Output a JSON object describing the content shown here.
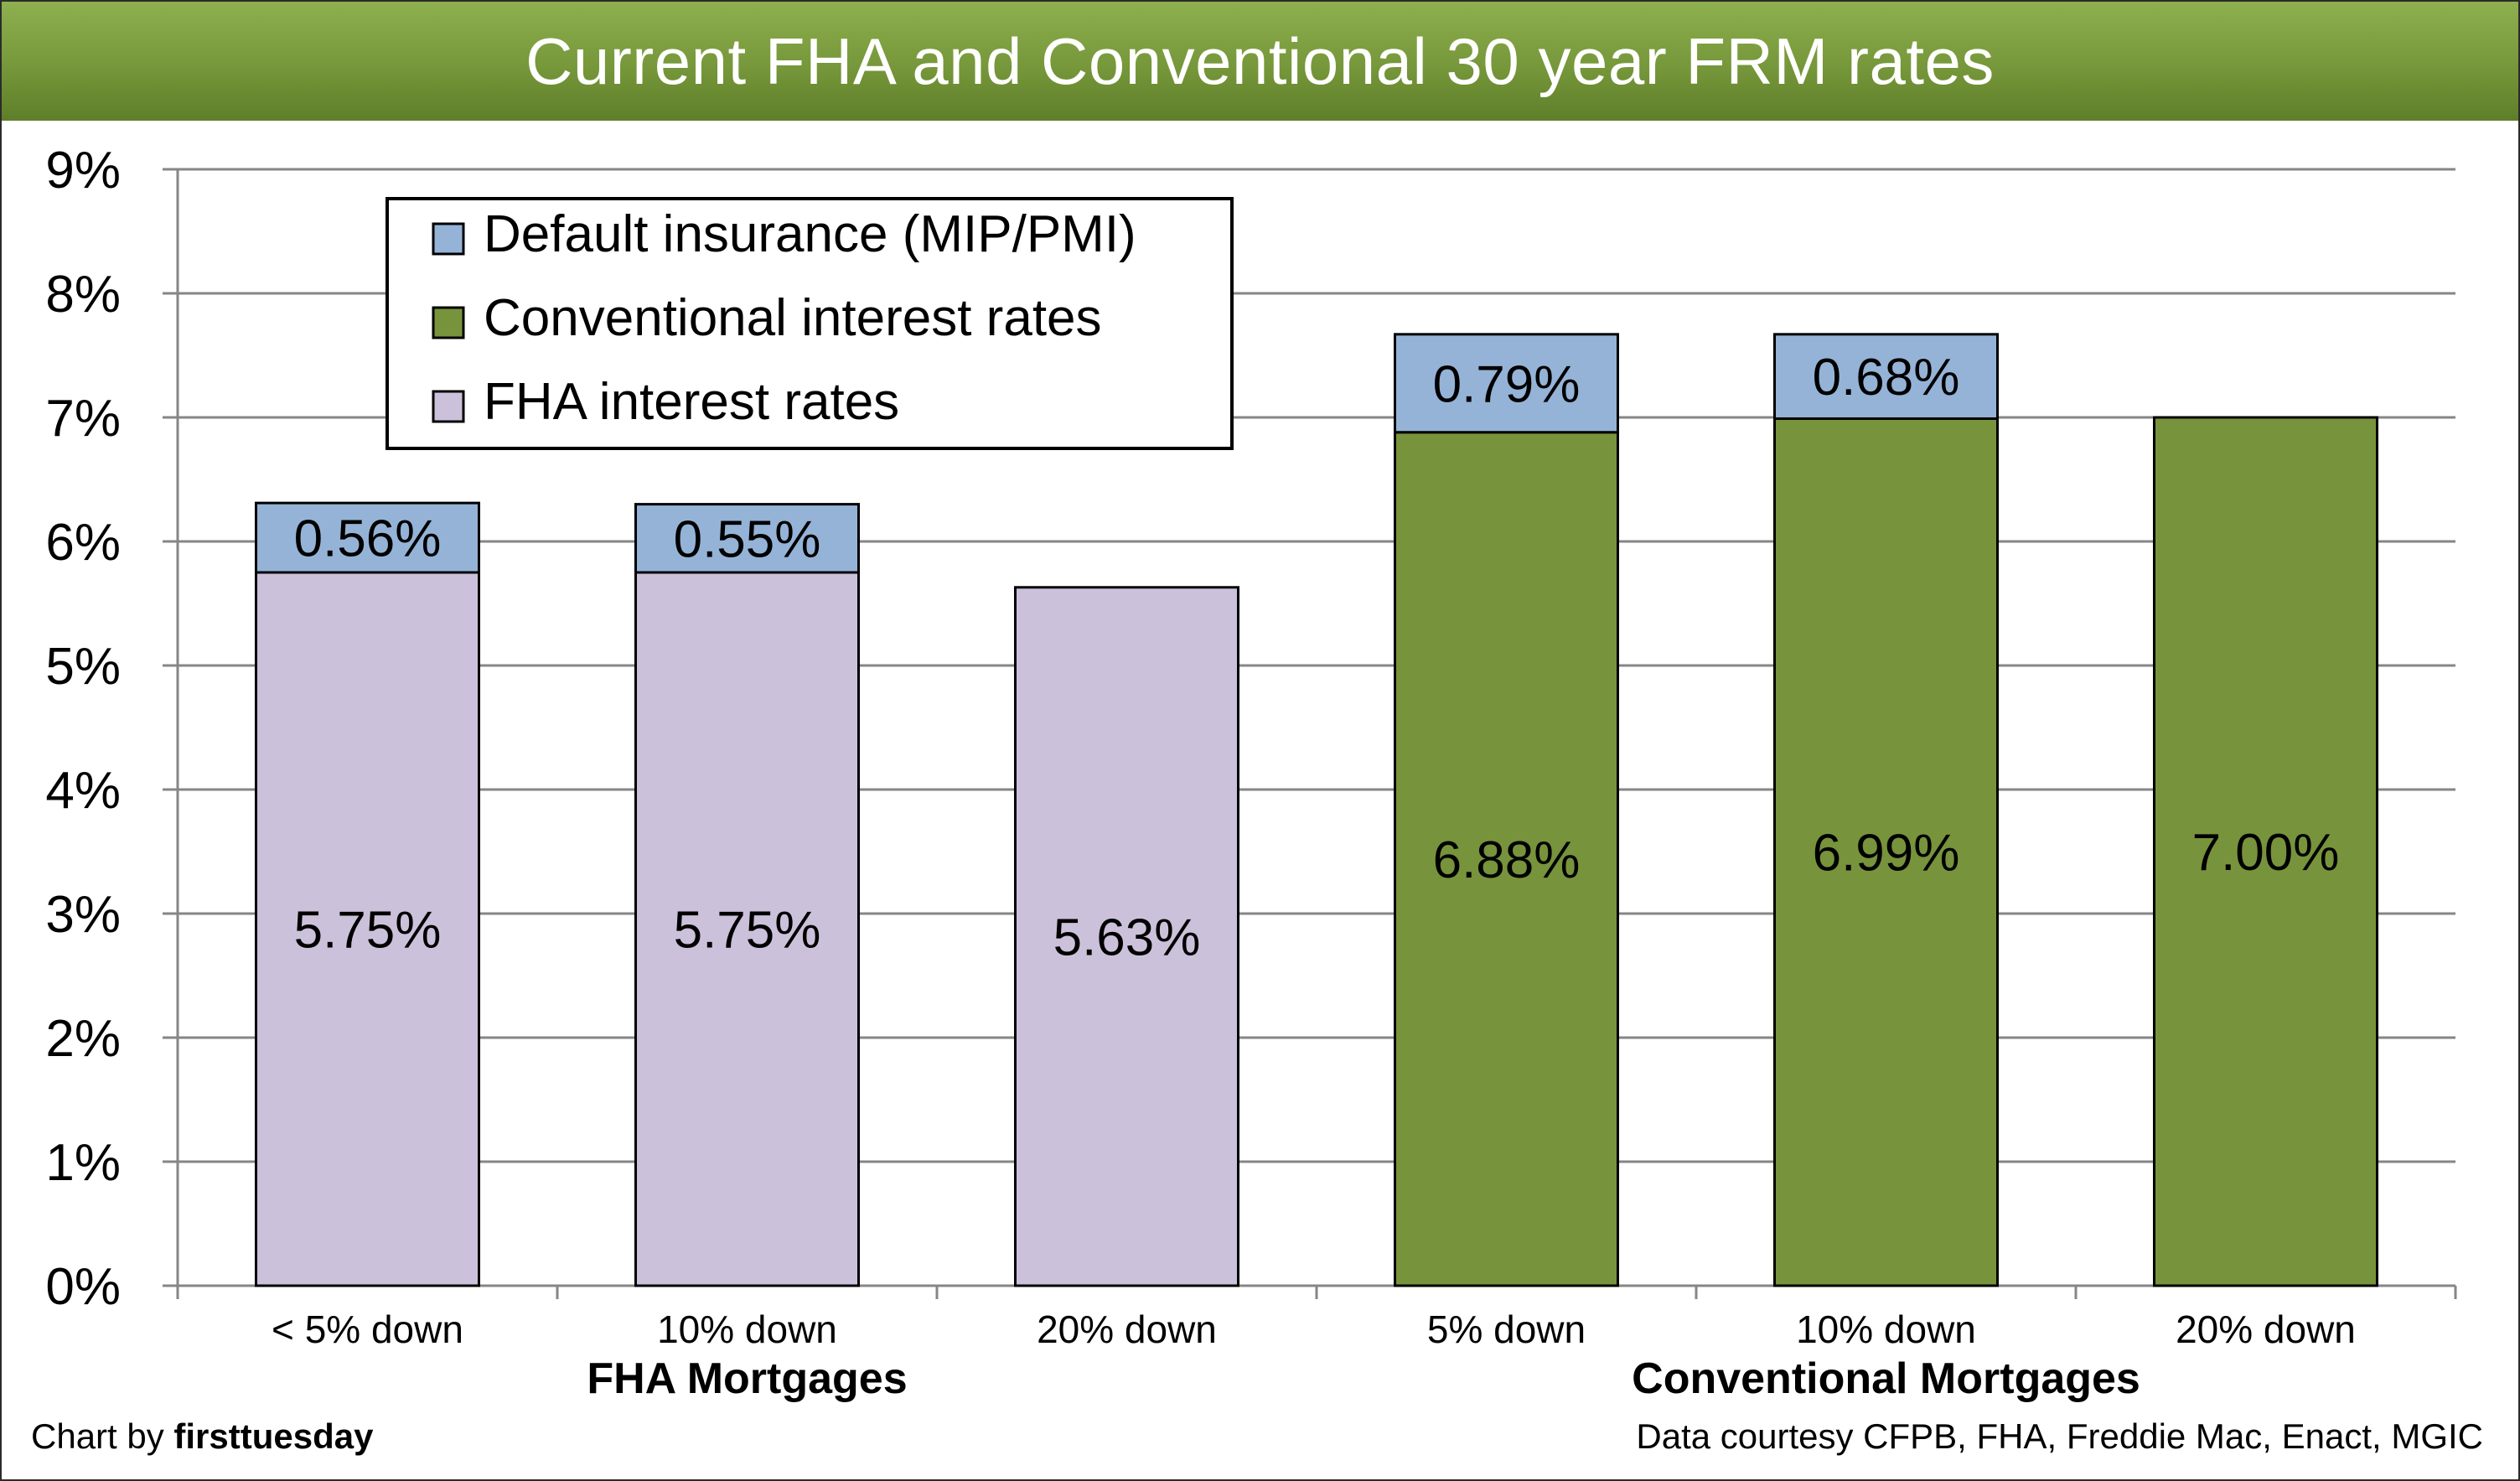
{
  "chart_data": {
    "type": "bar",
    "stacked": true,
    "title": "Current FHA and Conventional 30 year FRM rates",
    "xlabel": "",
    "ylabel": "",
    "ylim": [
      0,
      9
    ],
    "yticks": [
      "0%",
      "1%",
      "2%",
      "3%",
      "4%",
      "5%",
      "6%",
      "7%",
      "8%",
      "9%"
    ],
    "grid": true,
    "legend_position": "top-left",
    "categories": [
      "< 5% down",
      "10% down",
      "20% down",
      "5% down",
      "10% down",
      "20% down"
    ],
    "groups": [
      {
        "label": "FHA Mortgages",
        "from": 0,
        "to": 2
      },
      {
        "label": "Conventional Mortgages",
        "from": 3,
        "to": 5
      }
    ],
    "series": [
      {
        "name": "FHA interest rates",
        "color": "#ccc1da",
        "values": [
          5.75,
          5.75,
          5.63,
          null,
          null,
          null
        ],
        "labels": [
          "5.75%",
          "5.75%",
          "5.63%",
          "",
          "",
          ""
        ]
      },
      {
        "name": "Conventional interest rates",
        "color": "#77933c",
        "values": [
          null,
          null,
          null,
          6.88,
          6.99,
          7.0
        ],
        "labels": [
          "",
          "",
          "",
          "6.88%",
          "6.99%",
          "7.00%"
        ]
      },
      {
        "name": "Default insurance (MIP/PMI)",
        "color": "#95b3d7",
        "values": [
          0.56,
          0.55,
          0,
          0.79,
          0.68,
          0
        ],
        "labels": [
          "0.56%",
          "0.55%",
          "",
          "0.79%",
          "0.68%",
          ""
        ]
      }
    ],
    "legend": [
      {
        "name": "Default insurance (MIP/PMI)",
        "color": "#95b3d7"
      },
      {
        "name": "Conventional interest rates",
        "color": "#77933c"
      },
      {
        "name": "FHA interest rates",
        "color": "#ccc1da"
      }
    ]
  },
  "footer": {
    "credit_prefix": "Chart by ",
    "credit_brand": "firsttuesday",
    "source": "Data courtesy CFPB, FHA, Freddie Mac, Enact, MGIC"
  },
  "colors": {
    "title_bar": "#77933c",
    "grid": "#868686",
    "bar_stroke": "#000000"
  }
}
